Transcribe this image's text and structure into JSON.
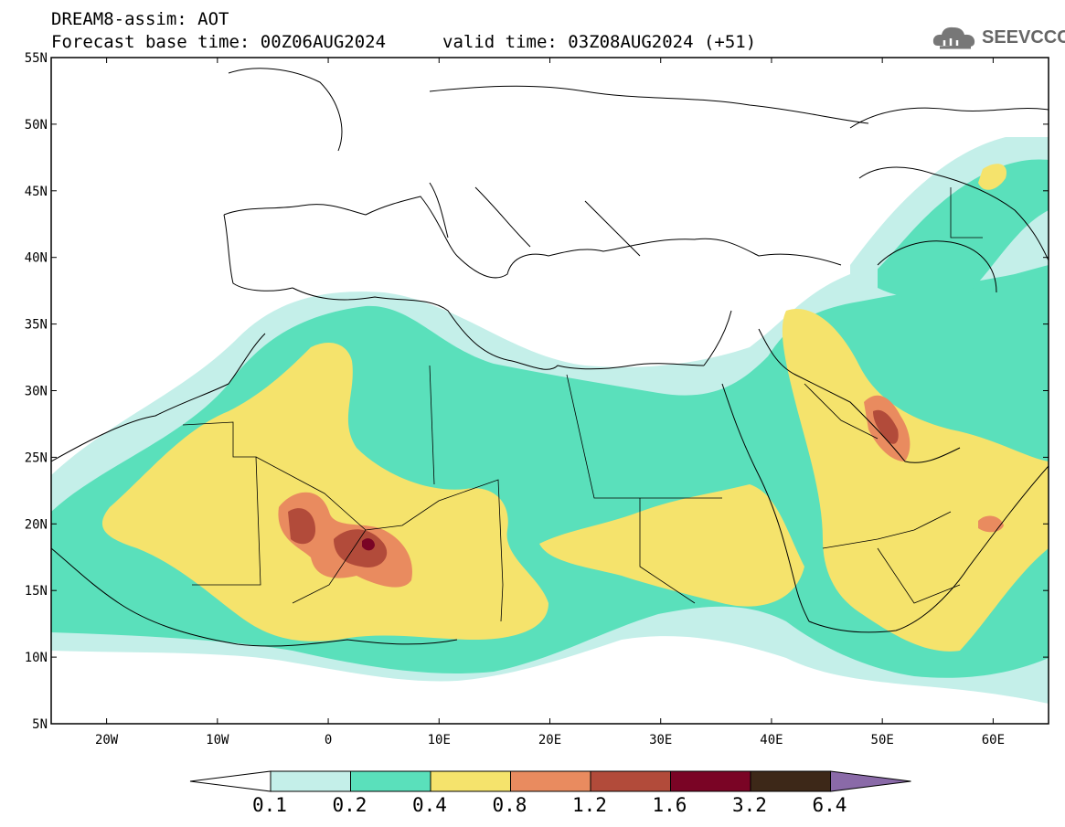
{
  "header": {
    "title_line1": "DREAM8-assim: AOT",
    "title_line2": "Forecast base time: 00Z06AUG2024",
    "valid_time": "valid time: 03Z08AUG2024 (+51)"
  },
  "logo": {
    "text": "SEEVCCC",
    "icon": "cloud-icon"
  },
  "map": {
    "lon_range": [
      -25,
      65
    ],
    "lat_range": [
      5,
      55
    ],
    "lat_labels": [
      "55N",
      "50N",
      "45N",
      "40N",
      "35N",
      "30N",
      "25N",
      "20N",
      "15N",
      "10N",
      "5N"
    ],
    "lon_labels": [
      "20W",
      "10W",
      "0",
      "10E",
      "20E",
      "30E",
      "40E",
      "50E",
      "60E"
    ]
  },
  "colorbar": {
    "levels": [
      "0.1",
      "0.2",
      "0.4",
      "0.8",
      "1.2",
      "1.6",
      "3.2",
      "6.4"
    ],
    "colors": [
      "#c4efe9",
      "#5ae0bb",
      "#f5e36c",
      "#e98b5f",
      "#b24b3a",
      "#7a0425",
      "#3d2818",
      "#8a6aa8"
    ]
  }
}
